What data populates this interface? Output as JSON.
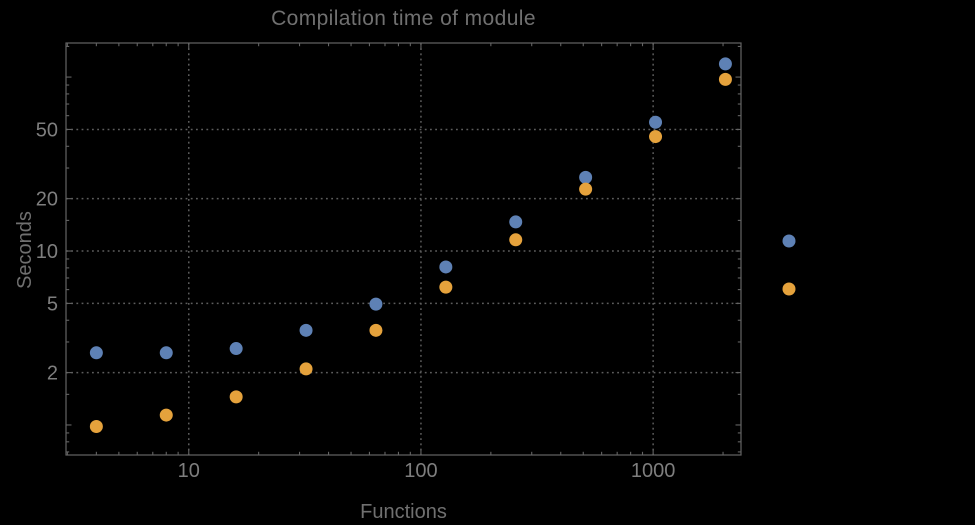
{
  "title": "Compilation time of module",
  "colors": {
    "background": "#000000",
    "frame": "#646464",
    "grid": "#5D5D5D",
    "title_text": "#707070",
    "tick_text": "#7E7E7E",
    "axis_label_text": "#707070",
    "series1": "#5E81B5",
    "series2": "#E5A23C"
  },
  "chart_data": {
    "type": "scatter",
    "title": "Compilation time of module",
    "xlabel": "Functions",
    "ylabel": "Seconds",
    "xscale": "log",
    "yscale": "log",
    "xlim": [
      2.96,
      2390
    ],
    "ylim": [
      0.672,
      157
    ],
    "grid": "dotted lines at labeled ticks only",
    "legend_position": "outside right, markers only (no visible labels)",
    "x": [
      4,
      8,
      16,
      32,
      64,
      128,
      256,
      512,
      1024,
      2048
    ],
    "series": [
      {
        "name": "series-1",
        "color": "#5E81B5",
        "values": [
          2.6,
          2.6,
          2.75,
          3.5,
          4.95,
          8.1,
          14.7,
          26.5,
          55,
          119
        ]
      },
      {
        "name": "series-2",
        "color": "#E5A23C",
        "values": [
          0.98,
          1.14,
          1.45,
          2.1,
          3.5,
          6.2,
          11.6,
          22.7,
          45.5,
          97
        ]
      }
    ],
    "x_ticks": [
      {
        "value": 10,
        "label": "10"
      },
      {
        "value": 100,
        "label": "100"
      },
      {
        "value": 1000,
        "label": "1000"
      }
    ],
    "y_ticks": [
      {
        "value": 2,
        "label": "2"
      },
      {
        "value": 5,
        "label": "5"
      },
      {
        "value": 10,
        "label": "10"
      },
      {
        "value": 20,
        "label": "20"
      },
      {
        "value": 50,
        "label": "50"
      }
    ],
    "x_minor_ticks": [
      3,
      4,
      5,
      6,
      7,
      8,
      9,
      20,
      30,
      40,
      50,
      60,
      70,
      80,
      90,
      200,
      300,
      400,
      500,
      600,
      700,
      800,
      900,
      2000
    ],
    "y_minor_ticks": [
      0.7,
      0.8,
      0.9,
      1.5,
      3,
      4,
      6,
      7,
      8,
      9,
      15,
      30,
      40,
      60,
      70,
      80,
      90,
      150
    ],
    "y_unlabeled_major_ticks": [
      1,
      100
    ]
  },
  "legend": {
    "labels_visible": false,
    "markers": [
      {
        "series": "series-1",
        "color": "#5E81B5"
      },
      {
        "series": "series-2",
        "color": "#E5A23C"
      }
    ]
  }
}
